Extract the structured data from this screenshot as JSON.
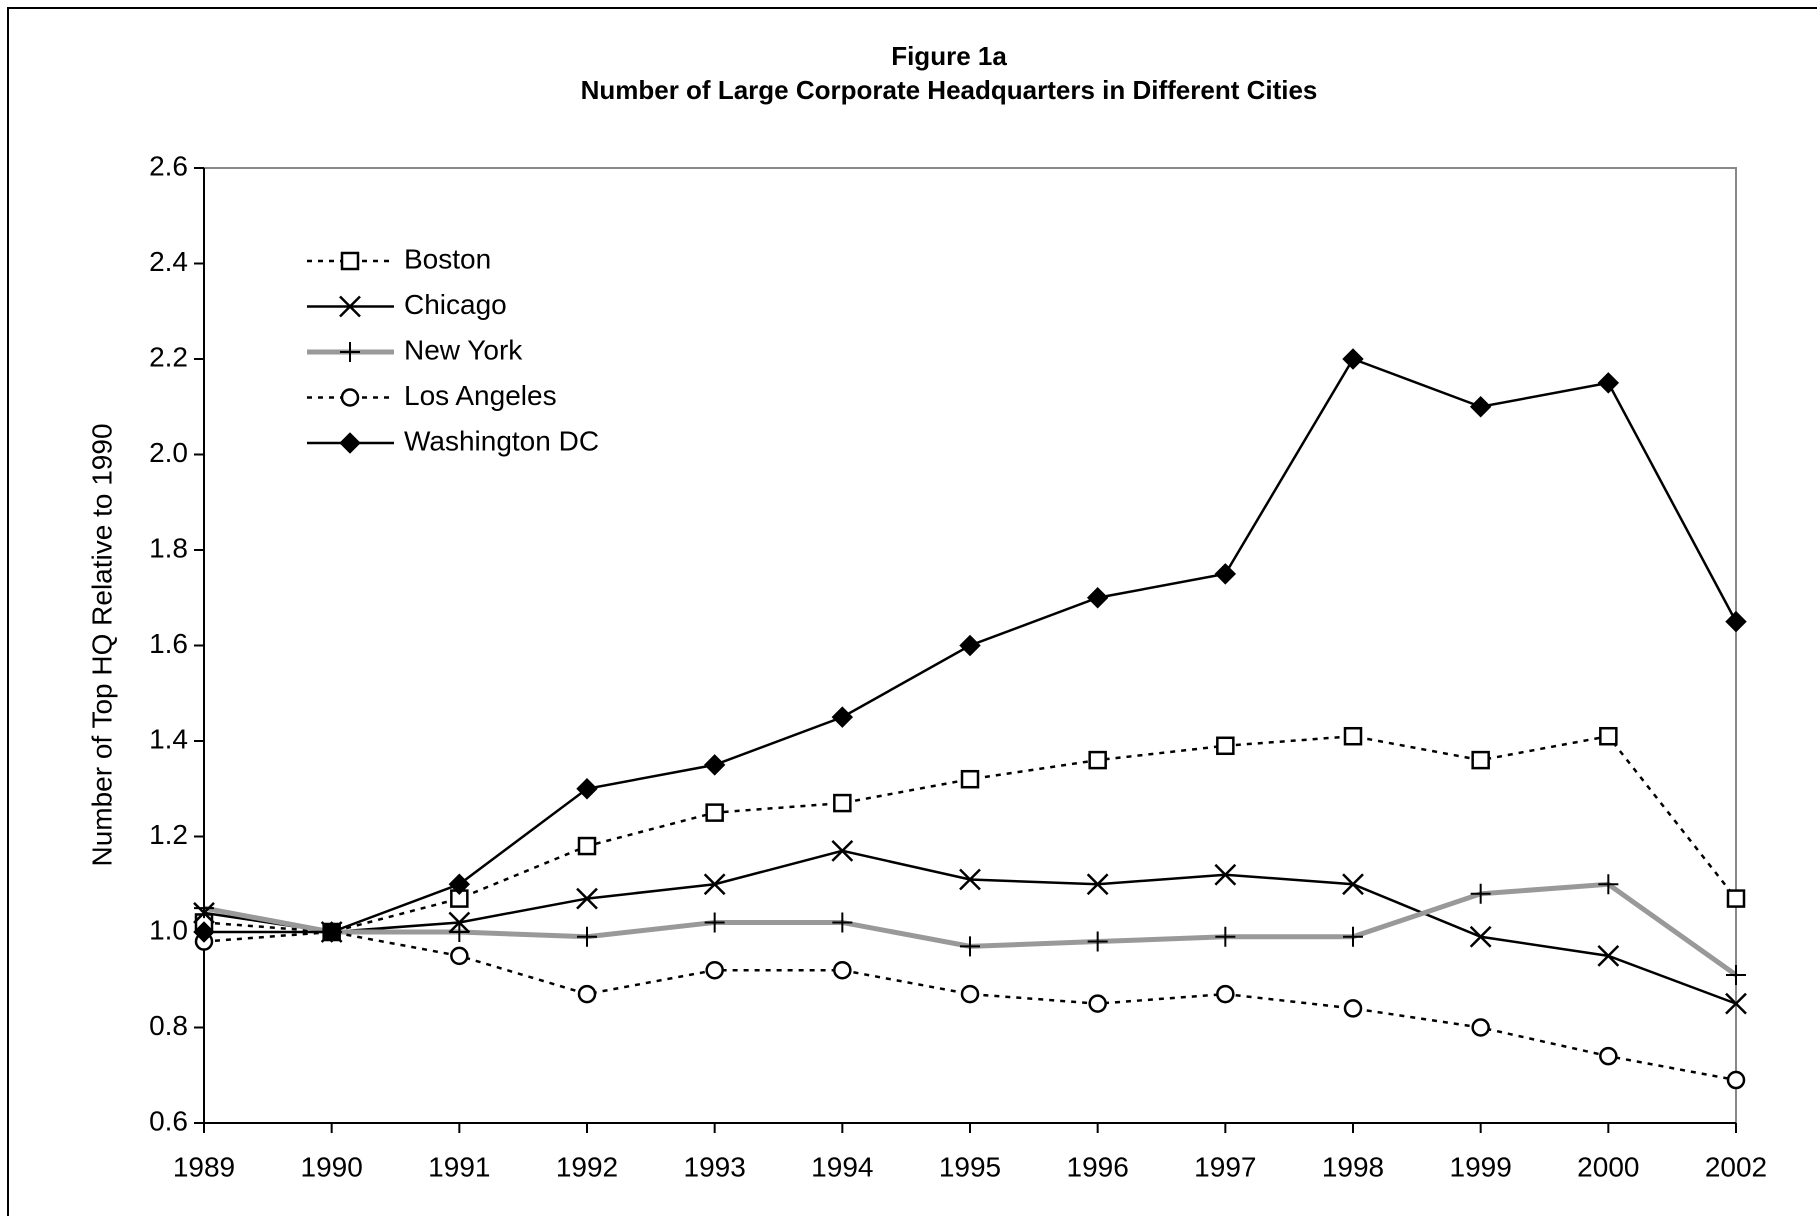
{
  "chart_data": {
    "type": "line",
    "title": "Figure 1a",
    "subtitle": "Number of Large Corporate Headquarters in Different Cities",
    "y_label": "Number of Top HQ Relative to 1990",
    "categories": [
      "1989",
      "1990",
      "1991",
      "1992",
      "1993",
      "1994",
      "1995",
      "1996",
      "1997",
      "1998",
      "1999",
      "2000",
      "2002"
    ],
    "ylim": [
      0.6,
      2.6
    ],
    "yticks": [
      0.6,
      0.8,
      {
        "value": 1.0,
        "label": "1.0"
      },
      1.2,
      1.4,
      1.6,
      1.8,
      {
        "value": 2.0,
        "label": "2.0"
      },
      2.2,
      2.4,
      2.6
    ],
    "grid": false,
    "legend": "upper left",
    "series": [
      {
        "name": "Boston",
        "color": "#000000",
        "dash": "dotted",
        "marker": "square",
        "values": [
          1.02,
          1.0,
          1.07,
          1.18,
          1.25,
          1.27,
          1.32,
          1.36,
          1.39,
          1.41,
          1.36,
          1.41,
          1.07
        ]
      },
      {
        "name": "Chicago",
        "color": "#000000",
        "dash": "solid",
        "marker": "x",
        "values": [
          1.04,
          1.0,
          1.02,
          1.07,
          1.1,
          1.17,
          1.11,
          1.1,
          1.12,
          1.1,
          0.99,
          0.95,
          0.85
        ]
      },
      {
        "name": "New York",
        "color": "#999999",
        "dash": "solid",
        "marker": "plus",
        "values": [
          1.05,
          1.0,
          1.0,
          0.99,
          1.02,
          1.02,
          0.97,
          0.98,
          0.99,
          0.99,
          1.08,
          1.1,
          0.91
        ]
      },
      {
        "name": "Los Angeles",
        "color": "#000000",
        "dash": "dotted",
        "marker": "circle",
        "values": [
          0.98,
          1.0,
          0.95,
          0.87,
          0.92,
          0.92,
          0.87,
          0.85,
          0.87,
          0.84,
          0.8,
          0.74,
          0.69
        ]
      },
      {
        "name": "Washington DC",
        "color": "#000000",
        "dash": "solid",
        "marker": "diamond",
        "values": [
          1.0,
          1.0,
          1.1,
          1.3,
          1.35,
          1.45,
          1.6,
          1.7,
          1.75,
          2.2,
          2.1,
          2.15,
          1.65
        ]
      }
    ]
  }
}
